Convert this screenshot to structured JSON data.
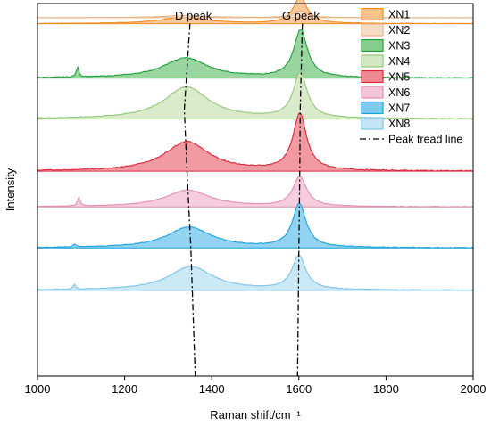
{
  "chart_data": {
    "type": "area",
    "xlabel": "Raman shift/cm⁻¹",
    "ylabel": "Intensity",
    "xlim": [
      1000,
      2000
    ],
    "xticks": [
      1000,
      1200,
      1400,
      1600,
      1800,
      2000
    ],
    "ytick_labels": false,
    "stacking": "offset",
    "annotations": [
      {
        "text": "D peak",
        "x": 1340
      },
      {
        "text": "G peak",
        "x": 1600
      }
    ],
    "legend": {
      "placement": "top-right",
      "trend_line_label": "Peak tread line"
    },
    "series": [
      {
        "name": "XN1",
        "color": "#F28A1E",
        "fill": "#F9C08A",
        "baseline": 0.946,
        "amplitude": 0.071,
        "d_center": 1335,
        "d_height": 0.24,
        "g_center": 1603,
        "g_height": 1.0,
        "extra_peak": null
      },
      {
        "name": "XN2",
        "color": "#E8B486",
        "fill": "#F5DCC4",
        "baseline": 0.962,
        "amplitude": 0.018,
        "d_center": 1337,
        "d_height": 0.3,
        "g_center": 1603,
        "g_height": 1.0,
        "extra_peak": null
      },
      {
        "name": "XN3",
        "color": "#1E9E3A",
        "fill": "#86CE8E",
        "baseline": 0.8,
        "amplitude": 0.128,
        "d_center": 1340,
        "d_height": 0.42,
        "g_center": 1604,
        "g_height": 1.0,
        "extra_peak": {
          "x": 1092,
          "h": 0.2
        }
      },
      {
        "name": "XN4",
        "color": "#97C67A",
        "fill": "#D2E8C2",
        "baseline": 0.69,
        "amplitude": 0.123,
        "d_center": 1342,
        "d_height": 0.7,
        "g_center": 1603,
        "g_height": 1.0,
        "extra_peak": null
      },
      {
        "name": "XN5",
        "color": "#D8283A",
        "fill": "#EE8892",
        "baseline": 0.55,
        "amplitude": 0.152,
        "d_center": 1343,
        "d_height": 0.52,
        "g_center": 1602,
        "g_height": 1.0,
        "extra_peak": null
      },
      {
        "name": "XN6",
        "color": "#E48CB0",
        "fill": "#F4C4D8",
        "baseline": 0.454,
        "amplitude": 0.08,
        "d_center": 1345,
        "d_height": 0.56,
        "g_center": 1602,
        "g_height": 1.0,
        "extra_peak": {
          "x": 1095,
          "h": 0.3
        }
      },
      {
        "name": "XN7",
        "color": "#1AA2DC",
        "fill": "#7FCBEE",
        "baseline": 0.344,
        "amplitude": 0.116,
        "d_center": 1348,
        "d_height": 0.48,
        "g_center": 1601,
        "g_height": 1.0,
        "extra_peak": {
          "x": 1085,
          "h": 0.06
        }
      },
      {
        "name": "XN8",
        "color": "#7CC3E8",
        "fill": "#C2E4F6",
        "baseline": 0.23,
        "amplitude": 0.091,
        "d_center": 1352,
        "d_height": 0.7,
        "g_center": 1600,
        "g_height": 1.0,
        "extra_peak": {
          "x": 1085,
          "h": 0.14
        }
      }
    ],
    "trend_line": {
      "D": [
        {
          "x": 1350,
          "y": 0.946
        },
        {
          "x": 1337,
          "y": 0.715
        },
        {
          "x": 1343,
          "y": 0.554
        },
        {
          "x": 1352,
          "y": 0.344
        },
        {
          "x": 1362,
          "y": 0.0
        }
      ],
      "G": [
        {
          "x": 1608,
          "y": 0.946
        },
        {
          "x": 1603,
          "y": 0.715
        },
        {
          "x": 1602,
          "y": 0.554
        },
        {
          "x": 1600,
          "y": 0.344
        },
        {
          "x": 1597,
          "y": 0.0
        }
      ]
    }
  }
}
